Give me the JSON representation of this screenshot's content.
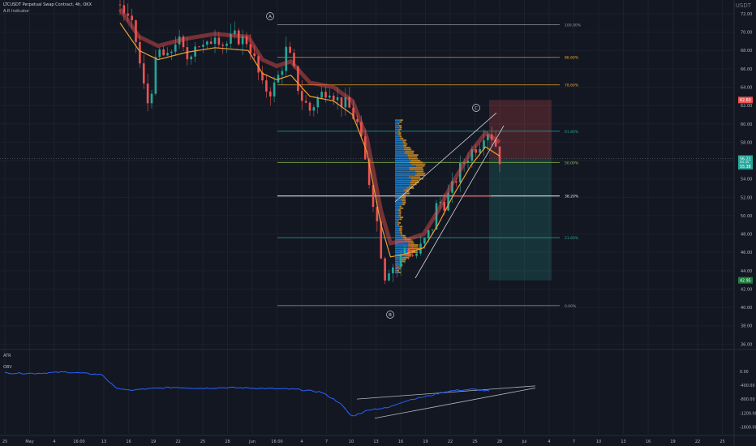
{
  "header": {
    "title": "LTCUSDT Perpetual Swap Contract, 4h, OKX",
    "indicator": "A.R Indicator",
    "currency": "USDT"
  },
  "colors": {
    "background": "#131722",
    "bull": "#26a69a",
    "bear": "#ef5350",
    "ema": "#f0a030",
    "fib": "#e6e6e6",
    "obv": "#2962ff",
    "profile_up": "#2196f3",
    "profile_down": "#f5a623"
  },
  "price_axis": {
    "ticks": [
      "72.00",
      "70.00",
      "68.00",
      "66.00",
      "64.00",
      "62.00",
      "60.00",
      "58.00",
      "56.00",
      "54.00",
      "52.00",
      "50.00",
      "48.00",
      "46.00",
      "44.00",
      "42.00",
      "40.00",
      "38.00",
      "36.00"
    ],
    "label_red": "62.60",
    "label_price": "56.22",
    "label_price_sub": "00:45",
    "label_teal": "55.38",
    "label_green": "42.95"
  },
  "obv_axis": {
    "ticks": [
      "0.00",
      "-400.00",
      "-800.00",
      "-1200.00",
      "-1600.00"
    ]
  },
  "time_axis": {
    "ticks": [
      "25",
      "May",
      "4",
      "16:00",
      "13",
      "16",
      "19",
      "22",
      "25",
      "28",
      "Jun",
      "16:00",
      "4",
      "7",
      "10",
      "13",
      "16",
      "19",
      "22",
      "25",
      "28",
      "Jul",
      "4",
      "7",
      "10",
      "13",
      "16",
      "19",
      "22",
      "25"
    ]
  },
  "fib_levels": [
    {
      "label": "100.00%",
      "price": 70.8
    },
    {
      "label": "86.60%",
      "price": 67.25
    },
    {
      "label": "78.60%",
      "price": 64.25
    },
    {
      "label": "61.80%",
      "price": 59.2
    },
    {
      "label": "50.00%",
      "price": 55.8
    },
    {
      "label": "38.20%",
      "price": 52.15
    },
    {
      "label": "23.60%",
      "price": 47.6
    },
    {
      "label": "0.00%",
      "price": 40.2
    }
  ],
  "wave_labels": [
    "A",
    "B",
    "C"
  ],
  "indicator_labels": {
    "atr": "ATR",
    "obv": "OBV"
  },
  "chart_data": {
    "type": "candlestick",
    "title": "LTCUSDT Perpetual Swap Contract, 4h, OKX",
    "ylim": [
      35.5,
      73.5
    ],
    "obv_ylim": [
      -1800,
      300
    ],
    "price_path": [
      [
        0,
        73
      ],
      [
        3,
        70
      ],
      [
        5,
        64
      ],
      [
        6,
        62
      ],
      [
        8,
        68
      ],
      [
        10,
        67
      ],
      [
        12,
        69.5
      ],
      [
        14,
        67
      ],
      [
        16,
        69
      ],
      [
        18,
        68
      ],
      [
        20,
        70
      ],
      [
        22,
        68.5
      ],
      [
        24,
        69.5
      ],
      [
        27,
        69
      ],
      [
        28,
        67.5
      ],
      [
        30,
        64
      ],
      [
        32,
        63.5
      ],
      [
        34,
        66
      ],
      [
        35,
        68
      ],
      [
        36,
        67
      ],
      [
        38,
        63
      ],
      [
        40,
        61.5
      ],
      [
        42,
        63
      ],
      [
        44,
        64
      ],
      [
        46,
        62.5
      ],
      [
        48,
        62
      ],
      [
        50,
        60
      ],
      [
        52,
        55
      ],
      [
        54,
        50
      ],
      [
        55,
        46
      ],
      [
        56,
        43
      ],
      [
        57,
        45
      ],
      [
        58,
        44
      ],
      [
        60,
        46.5
      ],
      [
        62,
        45.5
      ],
      [
        64,
        47
      ],
      [
        66,
        49
      ],
      [
        67,
        52
      ],
      [
        68,
        51
      ],
      [
        70,
        53
      ],
      [
        72,
        55.5
      ],
      [
        74,
        57
      ],
      [
        76,
        58
      ],
      [
        77,
        59.5
      ],
      [
        78,
        59
      ],
      [
        79,
        58
      ],
      [
        80,
        56.2
      ]
    ],
    "ema_path": [
      [
        0,
        71
      ],
      [
        4,
        68
      ],
      [
        8,
        67
      ],
      [
        14,
        67.8
      ],
      [
        20,
        68.3
      ],
      [
        27,
        68
      ],
      [
        30,
        65.5
      ],
      [
        33,
        64.8
      ],
      [
        36,
        65.3
      ],
      [
        40,
        63
      ],
      [
        45,
        62.5
      ],
      [
        49,
        61
      ],
      [
        52,
        57
      ],
      [
        55,
        49
      ],
      [
        57,
        45.5
      ],
      [
        60,
        45.8
      ],
      [
        64,
        46.5
      ],
      [
        67,
        49
      ],
      [
        70,
        52
      ],
      [
        74,
        55.5
      ],
      [
        77,
        57.5
      ],
      [
        80,
        56.5
      ]
    ],
    "obv_path": [
      [
        0,
        -50
      ],
      [
        5,
        -60
      ],
      [
        10,
        -20
      ],
      [
        13,
        -60
      ],
      [
        16,
        -100
      ],
      [
        18,
        -450
      ],
      [
        20,
        -550
      ],
      [
        24,
        -500
      ],
      [
        28,
        -460
      ],
      [
        32,
        -490
      ],
      [
        36,
        -470
      ],
      [
        40,
        -480
      ],
      [
        44,
        -500
      ],
      [
        48,
        -520
      ],
      [
        52,
        -600
      ],
      [
        55,
        -900
      ],
      [
        57,
        -1300
      ],
      [
        60,
        -1100
      ],
      [
        63,
        -1050
      ],
      [
        65,
        -900
      ],
      [
        67,
        -800
      ],
      [
        70,
        -700
      ],
      [
        72,
        -600
      ],
      [
        74,
        -550
      ],
      [
        77,
        -520
      ],
      [
        80,
        -580
      ]
    ],
    "projection": {
      "entry": 56.2,
      "stop": 62.6,
      "target": 42.95
    }
  }
}
